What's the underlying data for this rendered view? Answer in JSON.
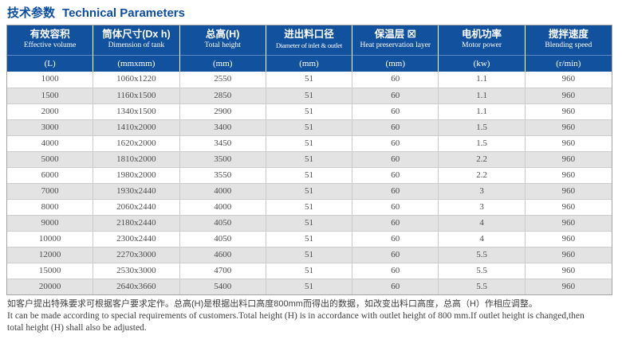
{
  "title": {
    "zh": "技术参数",
    "en": "Technical Parameters"
  },
  "colors": {
    "title_blue": "#0c4da2",
    "header_bg": "#11519e",
    "header_divider": "#5b87c4",
    "row_alt_gray": "#e3e3e3",
    "cell_border": "#cccccc",
    "outer_border": "#a3a3a3",
    "data_text": "#4d4d4d"
  },
  "table": {
    "columns": [
      {
        "zh": "有效容积",
        "en": "Effective volume",
        "unit": "(L)"
      },
      {
        "zh": "筒体尺寸(Dx h)",
        "en": "Dimension of tank",
        "unit": "(mmxmm)"
      },
      {
        "zh": "总高(H)",
        "en": "Total height",
        "unit": "(mm)"
      },
      {
        "zh": "进出料口径",
        "en": "Diameter of inlet & outlet",
        "unit": "(mm)"
      },
      {
        "zh": "保温层 ☒",
        "en": "Heat preservation layer",
        "unit": "(mm)"
      },
      {
        "zh": "电机功率",
        "en": "Motor power",
        "unit": "(kw)"
      },
      {
        "zh": "搅拌速度",
        "en": "Blending speed",
        "unit": "(r/min)"
      }
    ],
    "rows": [
      [
        "1000",
        "1060x1220",
        "2550",
        "51",
        "60",
        "1.1",
        "960"
      ],
      [
        "1500",
        "1160x1500",
        "2850",
        "51",
        "60",
        "1.1",
        "960"
      ],
      [
        "2000",
        "1340x1500",
        "2900",
        "51",
        "60",
        "1.1",
        "960"
      ],
      [
        "3000",
        "1410x2000",
        "3400",
        "51",
        "60",
        "1.5",
        "960"
      ],
      [
        "4000",
        "1620x2000",
        "3450",
        "51",
        "60",
        "1.5",
        "960"
      ],
      [
        "5000",
        "1810x2000",
        "3500",
        "51",
        "60",
        "2.2",
        "960"
      ],
      [
        "6000",
        "1980x2000",
        "3550",
        "51",
        "60",
        "2.2",
        "960"
      ],
      [
        "7000",
        "1930x2440",
        "4000",
        "51",
        "60",
        "3",
        "960"
      ],
      [
        "8000",
        "2060x2440",
        "4000",
        "51",
        "60",
        "3",
        "960"
      ],
      [
        "9000",
        "2180x2440",
        "4050",
        "51",
        "60",
        "4",
        "960"
      ],
      [
        "10000",
        "2300x2440",
        "4050",
        "51",
        "60",
        "4",
        "960"
      ],
      [
        "12000",
        "2270x3000",
        "4600",
        "51",
        "60",
        "5.5",
        "960"
      ],
      [
        "15000",
        "2530x3000",
        "4700",
        "51",
        "60",
        "5.5",
        "960"
      ],
      [
        "20000",
        "2640x3660",
        "5400",
        "51",
        "60",
        "5.5",
        "960"
      ]
    ]
  },
  "footer": {
    "zh": "如客户提出特殊要求可根据客户要求定作。总高(H)是根据出料口高度800mm而得出的数据，如改变出料口高度，总高（H）作相应调整。",
    "en1": "It can be made according to special requirements of customers.Total height (H) is in accordance with outlet height of 800 mm.If outlet height is changed,then",
    "en2": "total height (H) shall also be adjusted."
  }
}
